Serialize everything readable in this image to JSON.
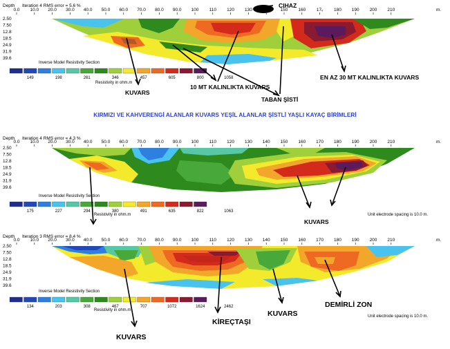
{
  "caption": "KIRMIZI VE KAHVERENGİ ALANLAR KUVARS YEŞİL ALANLAR ŞİSTLİ YAŞLI KAYAÇ BİRİMLERİ",
  "chart_data": [
    {
      "type": "heatmap",
      "title": "Iteration 4 RMS error = 5.6 %",
      "xlabel": "m.",
      "ylabel": "Depth",
      "x_ticks": [
        "0.0",
        "10.0",
        "20.0",
        "30.0",
        "40.0",
        "50.0",
        "60.0",
        "70.0",
        "80.0",
        "90.0",
        "100",
        "110",
        "120",
        "130",
        "140",
        "150",
        "160",
        "17ᵥ",
        "180",
        "190",
        "200",
        "210"
      ],
      "y_ticks": [
        "2.50",
        "7.50",
        "12.8",
        "18.5",
        "24.9",
        "31.9",
        "39.6"
      ],
      "legend_title": "Inverse Model Resistivity Section",
      "legend_values": [
        "149",
        "198",
        "261",
        "346",
        "457",
        "605",
        "800",
        "1058"
      ],
      "legend_unit": "Resistivity in ohm.m",
      "electrode_note": "",
      "annotations": [
        {
          "text": "CIHAZ",
          "style": "bold"
        },
        {
          "text": "KUVARS",
          "style": "bold"
        },
        {
          "text": "10 MT KALINLIKTA KUVARS",
          "style": "bold"
        },
        {
          "text": "TABAN ŞİSTİ",
          "style": "bold"
        },
        {
          "text": "EN AZ 30 MT KALINLIKTA KUVARS",
          "style": "bold"
        }
      ]
    },
    {
      "type": "heatmap",
      "title": "Iteration 4 RMS error = 4.3 %",
      "xlabel": "m.",
      "ylabel": "Depth",
      "x_ticks": [
        "0.0",
        "10.0",
        "20.0",
        "30.0",
        "40.0",
        "50.0",
        "60.0",
        "70.0",
        "80.0",
        "90.0",
        "100",
        "110",
        "120",
        "130",
        "140",
        "150",
        "160",
        "170",
        "180",
        "190",
        "200",
        "210"
      ],
      "y_ticks": [
        "2.50",
        "7.50",
        "12.8",
        "18.5",
        "24.9",
        "31.9",
        "39.6"
      ],
      "legend_title": "Inverse Model Resistivity Section",
      "legend_values": [
        "175",
        "227",
        "294",
        "380",
        "491",
        "635",
        "822",
        "1063"
      ],
      "legend_unit": "Resistivity in ohm.m",
      "electrode_note": "Unit electrode spacing is 10.0 m.",
      "annotations": [
        {
          "text": "KUVARS",
          "style": "bold"
        }
      ]
    },
    {
      "type": "heatmap",
      "title": "Iteration 3 RMS error = 8.4 %",
      "xlabel": "m.",
      "ylabel": "Depth",
      "x_ticks": [
        "0.0",
        "10.0",
        "20.0",
        "30.0",
        "40.0",
        "50.0",
        "60.0",
        "70.0",
        "80.0",
        "90.0",
        "100",
        "110",
        "120",
        "130",
        "140",
        "150",
        "160",
        "170",
        "180",
        "190",
        "200",
        "210"
      ],
      "y_ticks": [
        "2.50",
        "7.50",
        "12.8",
        "18.5",
        "24.9",
        "31.9",
        "39.6"
      ],
      "legend_title": "Inverse Model Resistivity Section",
      "legend_values": [
        "134",
        "203",
        "308",
        "467",
        "707",
        "1072",
        "1624",
        "2462"
      ],
      "legend_unit": "Resistivity in ohm.m",
      "electrode_note": "Unit electrode spacing is 10.0 m.",
      "annotations": [
        {
          "text": "KUVARS",
          "style": "bold"
        },
        {
          "text": "KİREÇTAŞI",
          "style": "bold"
        },
        {
          "text": "KUVARS",
          "style": "bold"
        },
        {
          "text": "DEMİRLİ ZON",
          "style": "bold"
        }
      ]
    }
  ],
  "palette": [
    "#1e2d8f",
    "#2348b8",
    "#2f7fe0",
    "#49c3ee",
    "#57c8a5",
    "#49a83a",
    "#2f8a1e",
    "#9fcf3a",
    "#f4ea2c",
    "#f2a62a",
    "#ee6a22",
    "#d42a1c",
    "#8a1a30",
    "#5a1a5e"
  ]
}
